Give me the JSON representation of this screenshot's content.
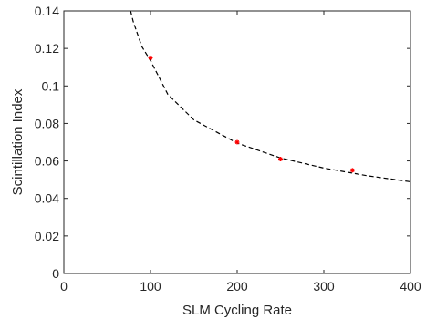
{
  "chart_data": {
    "type": "scatter",
    "xlabel": "SLM Cycling Rate",
    "ylabel": "Scintillation Index",
    "xlim": [
      0,
      400
    ],
    "ylim": [
      0,
      0.14
    ],
    "x_ticks": [
      0,
      100,
      200,
      300,
      400
    ],
    "x_tick_labels": [
      "0",
      "100",
      "200",
      "300",
      "400"
    ],
    "y_ticks": [
      0,
      0.02,
      0.04,
      0.06,
      0.08,
      0.1,
      0.12,
      0.14
    ],
    "y_tick_labels": [
      "0",
      "0.02",
      "0.04",
      "0.06",
      "0.08",
      "0.1",
      "0.12",
      "0.14"
    ],
    "grid": false,
    "series": [
      {
        "kind": "scatter",
        "marker": "star",
        "color": "#ff0000",
        "x": [
          100,
          200,
          250,
          333
        ],
        "y": [
          0.115,
          0.07,
          0.061,
          0.055
        ]
      },
      {
        "kind": "fit-curve",
        "style": "dashed",
        "color": "#000000",
        "x": [
          77,
          80,
          90,
          100,
          120,
          150,
          200,
          250,
          300,
          350,
          400
        ],
        "y": [
          0.14,
          0.1344,
          0.121,
          0.1135,
          0.0955,
          0.0819,
          0.0695,
          0.0616,
          0.0562,
          0.0521,
          0.0489
        ]
      }
    ]
  }
}
